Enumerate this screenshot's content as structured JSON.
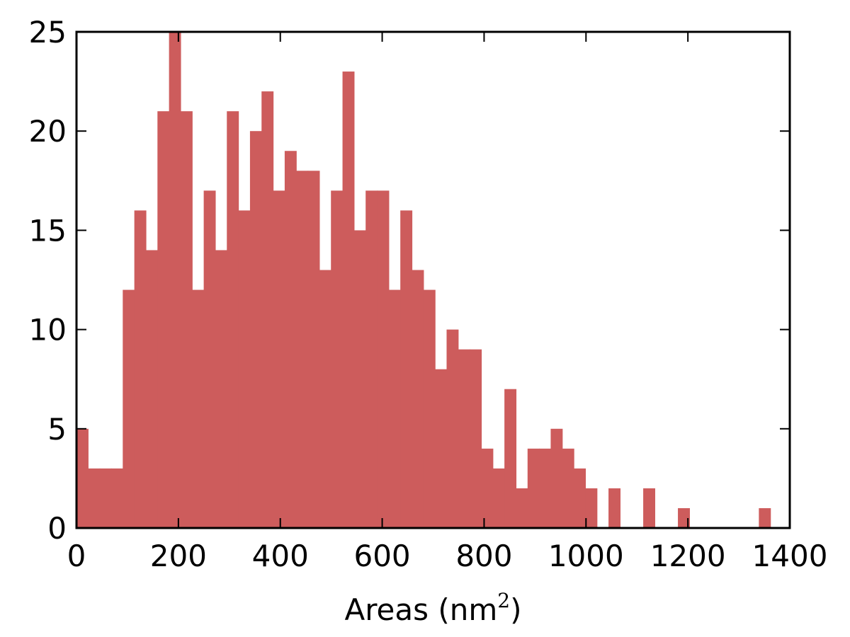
{
  "chart_data": {
    "type": "bar",
    "subtype": "histogram",
    "xlabel": "Areas (nm",
    "xlabel_superscript": "2",
    "xlabel_suffix": ")",
    "ylabel": "",
    "title": "",
    "xlim": [
      0,
      1400
    ],
    "ylim": [
      0,
      25
    ],
    "x_ticks": [
      0,
      200,
      400,
      600,
      800,
      1000,
      1200,
      1400
    ],
    "x_tick_labels": [
      "0",
      "200",
      "400",
      "600",
      "800",
      "1000",
      "1200",
      "1400"
    ],
    "y_ticks": [
      0,
      5,
      10,
      15,
      20,
      25
    ],
    "y_tick_labels": [
      "0",
      "5",
      "10",
      "15",
      "20",
      "25"
    ],
    "grid": false,
    "bar_color": "#cd5c5c",
    "bin_start": 0,
    "bin_width": 22.7,
    "values": [
      5,
      3,
      3,
      3,
      12,
      16,
      14,
      21,
      25,
      21,
      12,
      17,
      14,
      21,
      16,
      20,
      22,
      17,
      19,
      18,
      18,
      13,
      17,
      23,
      15,
      17,
      17,
      12,
      16,
      13,
      12,
      8,
      10,
      9,
      9,
      4,
      3,
      7,
      2,
      4,
      4,
      5,
      4,
      3,
      2,
      0,
      2,
      0,
      0,
      2,
      0,
      0,
      1,
      0,
      0,
      0,
      0,
      0,
      0,
      1
    ]
  }
}
